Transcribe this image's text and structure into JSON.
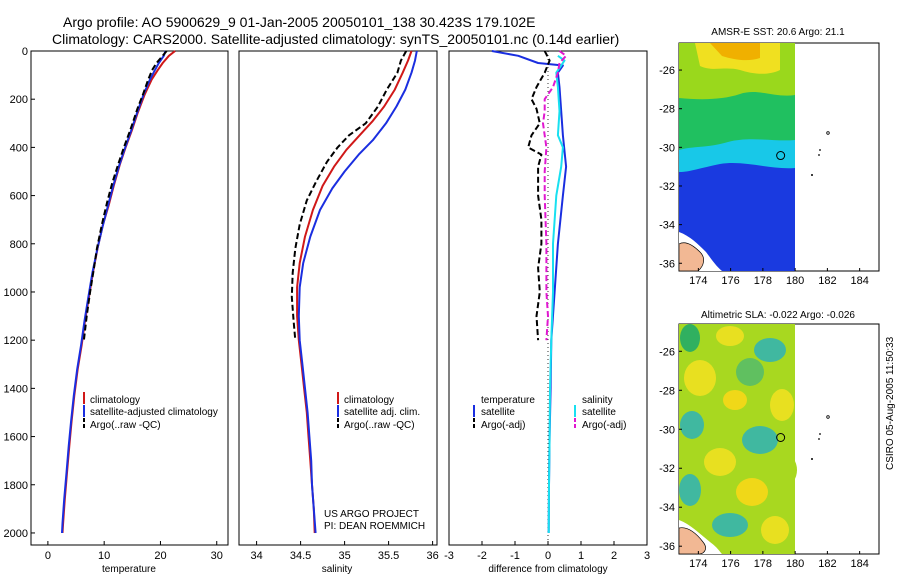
{
  "header": {
    "line1": "Argo profile: AO 5900629_9 01-Jan-2005 20050101_138 30.423S 179.102E",
    "line2": "Climatology: CARS2000. Satellite-adjusted climatology: synTS_20050101.nc (0.14d earlier)"
  },
  "credit": {
    "line1": "US ARGO PROJECT",
    "line2": "PI: DEAN ROEMMICH"
  },
  "stamp": "CSIRO 05-Aug-2005 11:50:33",
  "colors": {
    "red": "#d01818",
    "blue": "#1a2ee0",
    "cyan": "#18e0f0",
    "magenta": "#e018d0",
    "black": "#000000"
  },
  "chart_data": [
    {
      "type": "line",
      "xlabel": "temperature",
      "ylabel": "",
      "xlim": [
        -3,
        32
      ],
      "ylim": [
        2050,
        0
      ],
      "xticks": [
        "0",
        "10",
        "20",
        "30"
      ],
      "yticks": [
        "0",
        "200",
        "400",
        "600",
        "800",
        "1000",
        "1200",
        "1400",
        "1600",
        "1800",
        "2000"
      ],
      "legend": [
        "climatology",
        "satellite-adjusted climatology",
        "Argo(..raw -QC)"
      ],
      "series": [
        {
          "name": "climatology",
          "color": "red",
          "dash": "",
          "points": [
            [
              22.6,
              0
            ],
            [
              21.5,
              20
            ],
            [
              20.4,
              50
            ],
            [
              19.5,
              80
            ],
            [
              18.4,
              120
            ],
            [
              17.2,
              180
            ],
            [
              15.9,
              260
            ],
            [
              14.9,
              330
            ],
            [
              13.8,
              400
            ],
            [
              12.8,
              470
            ],
            [
              11.7,
              560
            ],
            [
              10.8,
              640
            ],
            [
              9.8,
              720
            ],
            [
              8.9,
              810
            ],
            [
              8.0,
              920
            ],
            [
              7.3,
              1020
            ],
            [
              6.6,
              1120
            ],
            [
              6.0,
              1220
            ],
            [
              5.3,
              1320
            ],
            [
              4.7,
              1430
            ],
            [
              4.2,
              1540
            ],
            [
              3.8,
              1640
            ],
            [
              3.4,
              1750
            ],
            [
              3.0,
              1860
            ],
            [
              2.7,
              1960
            ],
            [
              2.6,
              2000
            ]
          ]
        },
        {
          "name": "satellite-adjusted climatology",
          "color": "blue",
          "dash": "",
          "points": [
            [
              20.9,
              0
            ],
            [
              20.6,
              20
            ],
            [
              19.7,
              50
            ],
            [
              19.0,
              80
            ],
            [
              18.1,
              120
            ],
            [
              17.0,
              180
            ],
            [
              15.8,
              260
            ],
            [
              14.8,
              330
            ],
            [
              13.6,
              410
            ],
            [
              12.6,
              480
            ],
            [
              11.6,
              560
            ],
            [
              10.6,
              650
            ],
            [
              9.7,
              730
            ],
            [
              8.8,
              820
            ],
            [
              7.9,
              920
            ],
            [
              7.2,
              1020
            ],
            [
              6.5,
              1120
            ],
            [
              5.9,
              1220
            ],
            [
              5.2,
              1320
            ],
            [
              4.6,
              1430
            ],
            [
              4.1,
              1540
            ],
            [
              3.7,
              1640
            ],
            [
              3.3,
              1750
            ],
            [
              2.9,
              1860
            ],
            [
              2.6,
              1960
            ],
            [
              2.5,
              2000
            ]
          ]
        },
        {
          "name": "Argo(..raw -QC)",
          "color": "black",
          "dash": "6 3",
          "points": [
            [
              21.1,
              0
            ],
            [
              20.4,
              20
            ],
            [
              19.3,
              50
            ],
            [
              18.5,
              80
            ],
            [
              17.8,
              120
            ],
            [
              16.9,
              180
            ],
            [
              15.9,
              240
            ],
            [
              15.2,
              290
            ],
            [
              14.6,
              330
            ],
            [
              13.5,
              400
            ],
            [
              12.5,
              470
            ],
            [
              11.4,
              550
            ],
            [
              10.5,
              630
            ],
            [
              9.6,
              720
            ],
            [
              8.7,
              820
            ],
            [
              8.2,
              900
            ],
            [
              7.5,
              1000
            ],
            [
              6.9,
              1100
            ],
            [
              6.4,
              1200
            ]
          ]
        }
      ]
    },
    {
      "type": "line",
      "xlabel": "salinity",
      "ylabel": "",
      "xlim": [
        33.8,
        36.05
      ],
      "ylim": [
        2050,
        0
      ],
      "xticks": [
        "34",
        "34.5",
        "35",
        "35.5",
        "36"
      ],
      "legend": [
        "climatology",
        "satellite adj. clim.",
        "Argo(..raw -QC)"
      ],
      "series": [
        {
          "name": "climatology",
          "color": "red",
          "dash": "",
          "points": [
            [
              35.76,
              0
            ],
            [
              35.72,
              40
            ],
            [
              35.66,
              90
            ],
            [
              35.57,
              160
            ],
            [
              35.45,
              230
            ],
            [
              35.32,
              290
            ],
            [
              35.17,
              350
            ],
            [
              35.02,
              410
            ],
            [
              34.88,
              480
            ],
            [
              34.75,
              560
            ],
            [
              34.64,
              660
            ],
            [
              34.55,
              770
            ],
            [
              34.49,
              880
            ],
            [
              34.46,
              980
            ],
            [
              34.46,
              1100
            ],
            [
              34.48,
              1200
            ],
            [
              34.51,
              1300
            ],
            [
              34.54,
              1400
            ],
            [
              34.57,
              1500
            ],
            [
              34.59,
              1600
            ],
            [
              34.61,
              1700
            ],
            [
              34.63,
              1800
            ],
            [
              34.65,
              1900
            ],
            [
              34.66,
              2000
            ]
          ]
        },
        {
          "name": "satellite adj. clim.",
          "color": "blue",
          "dash": "",
          "points": [
            [
              35.82,
              0
            ],
            [
              35.8,
              40
            ],
            [
              35.76,
              90
            ],
            [
              35.69,
              160
            ],
            [
              35.59,
              230
            ],
            [
              35.47,
              300
            ],
            [
              35.32,
              370
            ],
            [
              35.16,
              430
            ],
            [
              35.0,
              500
            ],
            [
              34.86,
              570
            ],
            [
              34.72,
              660
            ],
            [
              34.61,
              770
            ],
            [
              34.53,
              880
            ],
            [
              34.49,
              980
            ],
            [
              34.48,
              1100
            ],
            [
              34.49,
              1200
            ],
            [
              34.52,
              1300
            ],
            [
              34.55,
              1400
            ],
            [
              34.58,
              1500
            ],
            [
              34.6,
              1600
            ],
            [
              34.62,
              1700
            ],
            [
              34.63,
              1800
            ],
            [
              34.65,
              1900
            ],
            [
              34.67,
              2000
            ]
          ]
        },
        {
          "name": "Argo(..raw -QC)",
          "color": "black",
          "dash": "6 3",
          "points": [
            [
              35.7,
              0
            ],
            [
              35.64,
              40
            ],
            [
              35.6,
              90
            ],
            [
              35.48,
              160
            ],
            [
              35.38,
              230
            ],
            [
              35.24,
              300
            ],
            [
              35.05,
              350
            ],
            [
              34.92,
              400
            ],
            [
              34.8,
              460
            ],
            [
              34.68,
              540
            ],
            [
              34.57,
              620
            ],
            [
              34.49,
              720
            ],
            [
              34.44,
              820
            ],
            [
              34.41,
              920
            ],
            [
              34.4,
              1020
            ],
            [
              34.42,
              1120
            ],
            [
              34.44,
              1200
            ]
          ]
        }
      ]
    },
    {
      "type": "line",
      "xlabel": "difference from climatology",
      "ylabel": "",
      "xlim": [
        -3,
        3
      ],
      "ylim": [
        2050,
        0
      ],
      "xticks": [
        "-3",
        "-2",
        "-1",
        "0",
        "1",
        "2",
        "3"
      ],
      "legend": [
        "temperature",
        "satellite",
        "Argo(-adj)",
        "salinity",
        "satellite",
        "Argo(-adj)"
      ],
      "series": [
        {
          "name": "satellite",
          "color": "blue",
          "dash": "",
          "points": [
            [
              -1.7,
              0
            ],
            [
              -0.9,
              20
            ],
            [
              -0.3,
              50
            ],
            [
              0.45,
              60
            ],
            [
              0.3,
              90
            ],
            [
              0.35,
              150
            ],
            [
              0.4,
              250
            ],
            [
              0.45,
              350
            ],
            [
              0.55,
              480
            ],
            [
              0.45,
              600
            ],
            [
              0.3,
              800
            ],
            [
              0.2,
              1000
            ],
            [
              0.1,
              1200
            ],
            [
              0.08,
              1400
            ],
            [
              0.05,
              1600
            ],
            [
              0.03,
              1800
            ],
            [
              0.02,
              2000
            ]
          ]
        },
        {
          "name": "Argo(-adj)",
          "color": "black",
          "dash": "6 3",
          "points": [
            [
              -0.1,
              0
            ],
            [
              0.05,
              40
            ],
            [
              -0.1,
              90
            ],
            [
              -0.35,
              150
            ],
            [
              -0.5,
              200
            ],
            [
              -0.35,
              240
            ],
            [
              -0.25,
              300
            ],
            [
              -0.5,
              350
            ],
            [
              -0.6,
              400
            ],
            [
              -0.2,
              430
            ],
            [
              -0.3,
              480
            ],
            [
              -0.3,
              600
            ],
            [
              -0.2,
              700
            ],
            [
              -0.2,
              800
            ],
            [
              -0.3,
              900
            ],
            [
              -0.25,
              1000
            ],
            [
              -0.35,
              1100
            ],
            [
              -0.3,
              1200
            ]
          ]
        },
        {
          "name": "satellite",
          "color": "cyan",
          "dash": "",
          "points": [
            [
              0.3,
              20
            ],
            [
              0.5,
              40
            ],
            [
              0.25,
              90
            ],
            [
              0.3,
              150
            ],
            [
              0.35,
              250
            ],
            [
              0.3,
              350
            ],
            [
              0.45,
              400
            ],
            [
              0.4,
              480
            ],
            [
              0.25,
              600
            ],
            [
              0.15,
              800
            ],
            [
              0.15,
              1000
            ],
            [
              0.1,
              1200
            ],
            [
              0.06,
              1400
            ],
            [
              0.05,
              1600
            ],
            [
              0.03,
              1800
            ],
            [
              0.02,
              2000
            ]
          ]
        },
        {
          "name": "Argo(-adj)",
          "color": "magenta",
          "dash": "6 3",
          "points": [
            [
              0.35,
              0
            ],
            [
              0.55,
              20
            ],
            [
              0.35,
              50
            ],
            [
              0.3,
              90
            ],
            [
              0.15,
              150
            ],
            [
              -0.1,
              200
            ],
            [
              -0.1,
              250
            ],
            [
              -0.15,
              300
            ],
            [
              -0.05,
              400
            ],
            [
              -0.1,
              500
            ],
            [
              -0.1,
              600
            ],
            [
              -0.05,
              800
            ],
            [
              -0.05,
              1000
            ],
            [
              0.0,
              1100
            ],
            [
              -0.05,
              1200
            ]
          ]
        }
      ]
    },
    {
      "type": "heatmap",
      "title": "AMSR-E SST: 20.6 Argo: 21.1",
      "xlim": [
        172.8,
        185.2
      ],
      "ylim": [
        -36.4,
        -24.6
      ],
      "xticks": [
        "174",
        "176",
        "178",
        "180",
        "182",
        "184"
      ],
      "yticks": [
        "-26",
        "-28",
        "-30",
        "-32",
        "-34",
        "-36"
      ],
      "marker": [
        179.102,
        -30.423
      ]
    },
    {
      "type": "heatmap",
      "title": "Altimetric SLA: -0.022 Argo: -0.026",
      "xlim": [
        172.8,
        185.2
      ],
      "ylim": [
        -36.4,
        -24.6
      ],
      "xticks": [
        "174",
        "176",
        "178",
        "180",
        "182",
        "184"
      ],
      "yticks": [
        "-26",
        "-28",
        "-30",
        "-32",
        "-34",
        "-36"
      ],
      "marker": [
        179.102,
        -30.423
      ]
    }
  ]
}
